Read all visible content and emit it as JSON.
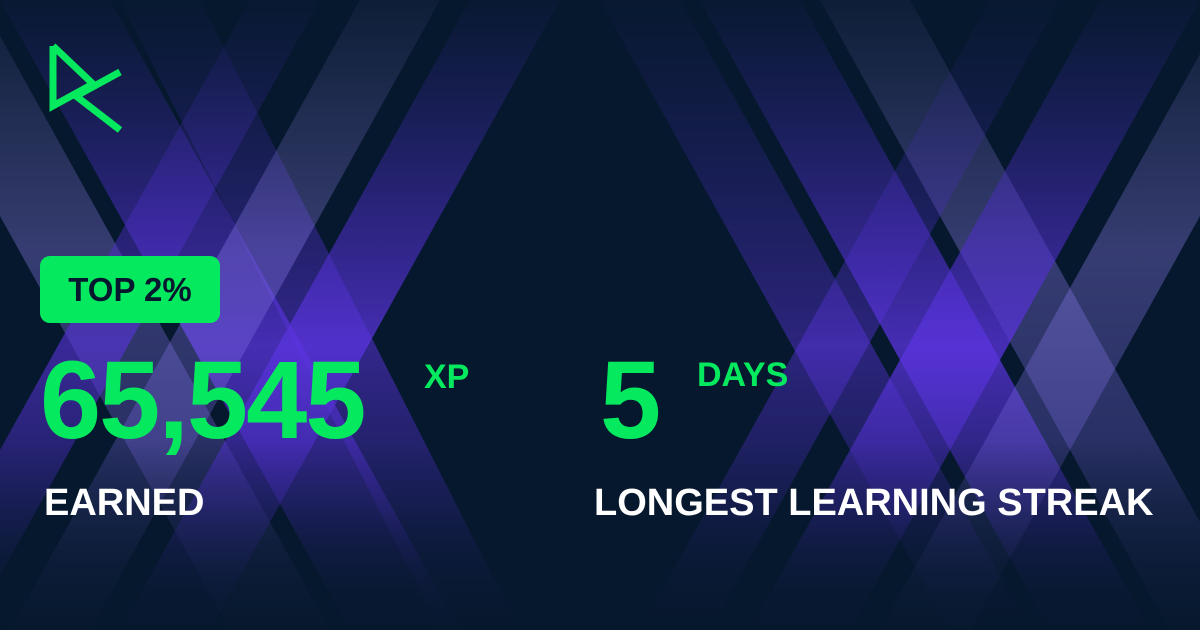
{
  "colors": {
    "background": "#06182d",
    "accent_green": "#05e95f",
    "band_purple": "#5a31d8",
    "text_white": "#ffffff"
  },
  "logo": {
    "icon": "datacamp-logo-icon"
  },
  "rank_badge": {
    "label": "TOP 2%"
  },
  "xp": {
    "value": "65,545",
    "unit": "XP",
    "caption": "EARNED"
  },
  "streak": {
    "value": "5",
    "unit": "DAYS",
    "caption": "LONGEST LEARNING STREAK"
  }
}
